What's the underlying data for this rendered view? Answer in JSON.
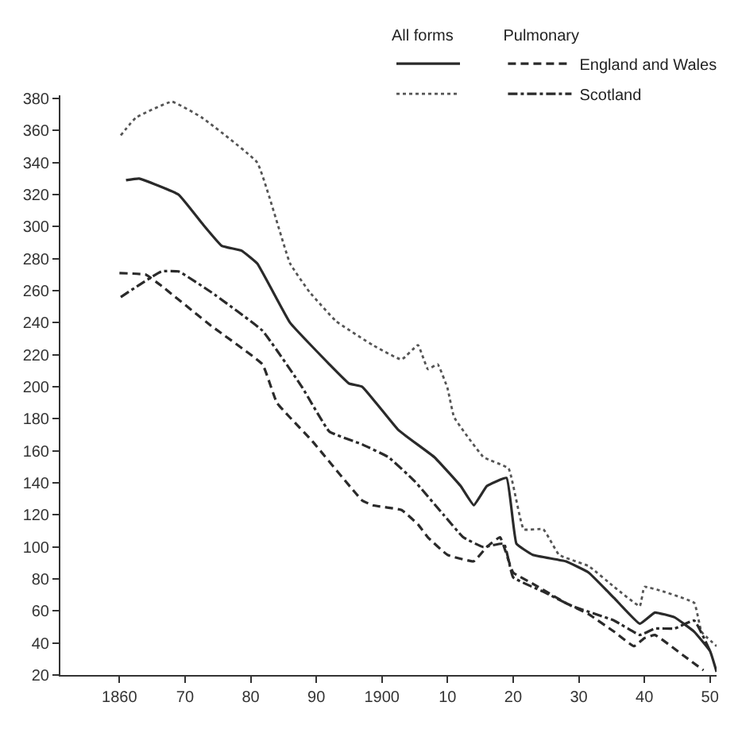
{
  "chart_data": {
    "type": "line",
    "xlim": [
      1851,
      1951
    ],
    "ylim": [
      20,
      382
    ],
    "xticks": [
      {
        "value": 1860,
        "label": "1860"
      },
      {
        "value": 1870,
        "label": "70"
      },
      {
        "value": 1880,
        "label": "80"
      },
      {
        "value": 1890,
        "label": "90"
      },
      {
        "value": 1900,
        "label": "1900"
      },
      {
        "value": 1910,
        "label": "10"
      },
      {
        "value": 1920,
        "label": "20"
      },
      {
        "value": 1930,
        "label": "30"
      },
      {
        "value": 1940,
        "label": "40"
      },
      {
        "value": 1950,
        "label": "50"
      }
    ],
    "yticks": [
      20,
      40,
      60,
      80,
      100,
      120,
      140,
      160,
      180,
      200,
      220,
      240,
      260,
      280,
      300,
      320,
      340,
      360,
      380
    ],
    "legend": "top right",
    "marker": "none",
    "annotations": [
      "All forms",
      "Pulmonary"
    ],
    "series": [
      {
        "color": "#2a2a2a",
        "line_style": "solid",
        "x": [
          1861,
          1863,
          1869,
          1872.6,
          1875.6,
          1878.6,
          1881,
          1886,
          1892,
          1895,
          1897,
          1902.5,
          1908,
          1912,
          1914,
          1916,
          1919,
          1920.5,
          1923,
          1928,
          1931.5,
          1935.4,
          1939.3,
          1941.6,
          1944.6,
          1947.6,
          1950,
          1951
        ],
        "values": [
          329,
          330,
          320,
          302,
          288,
          285,
          277,
          240,
          214,
          202,
          200,
          173,
          156,
          138,
          126,
          138,
          143,
          102,
          95,
          91,
          84,
          68,
          52,
          59,
          56,
          47,
          35,
          22
        ]
      },
      {
        "name": "England and Wales",
        "color": "#2a2a2a",
        "line_style": "dashed",
        "x": [
          1860,
          1864,
          1866.4,
          1874,
          1881.8,
          1884,
          1889.4,
          1897,
          1898.6,
          1903,
          1905.5,
          1907,
          1910,
          1914,
          1916,
          1918,
          1920,
          1923,
          1928,
          1931.5,
          1935.4,
          1938.4,
          1940,
          1941.6,
          1946,
          1949
        ],
        "values": [
          271,
          270,
          263,
          238,
          214,
          190,
          166,
          129,
          126,
          123,
          114,
          106,
          95,
          91,
          100,
          106,
          84,
          77,
          65,
          58,
          47,
          38,
          43,
          45,
          32,
          23
        ]
      },
      {
        "color": "#555555",
        "line_style": "dotted",
        "x": [
          1860.2,
          1862.5,
          1868,
          1872.6,
          1881,
          1886,
          1889,
          1893,
          1898.6,
          1903,
          1905.5,
          1907,
          1908.5,
          1910,
          1911,
          1915.5,
          1919.3,
          1921.6,
          1924.6,
          1927,
          1931.5,
          1935.4,
          1939.3,
          1940,
          1943,
          1947.6,
          1948.7,
          1951
        ],
        "values": [
          357,
          368,
          378,
          368,
          340,
          277,
          259,
          241,
          226,
          217,
          226,
          211,
          214,
          199,
          181,
          156,
          149,
          111,
          111,
          95,
          88,
          75,
          63,
          75,
          72,
          65,
          47,
          38
        ]
      },
      {
        "name": "Scotland",
        "color": "#2a2a2a",
        "line_style": "dashdot",
        "x": [
          1860.2,
          1866.4,
          1869,
          1874,
          1881.8,
          1887.8,
          1892,
          1897,
          1901,
          1905,
          1909.4,
          1912.4,
          1915.4,
          1918.6,
          1920,
          1924.6,
          1929,
          1935.4,
          1939.3,
          1941.6,
          1944.6,
          1947.6,
          1950
        ],
        "values": [
          256,
          272,
          272,
          259,
          235,
          200,
          172,
          164,
          156,
          141,
          120,
          106,
          100,
          102,
          81,
          72,
          63,
          54,
          45,
          49,
          49,
          54,
          35
        ]
      }
    ]
  }
}
